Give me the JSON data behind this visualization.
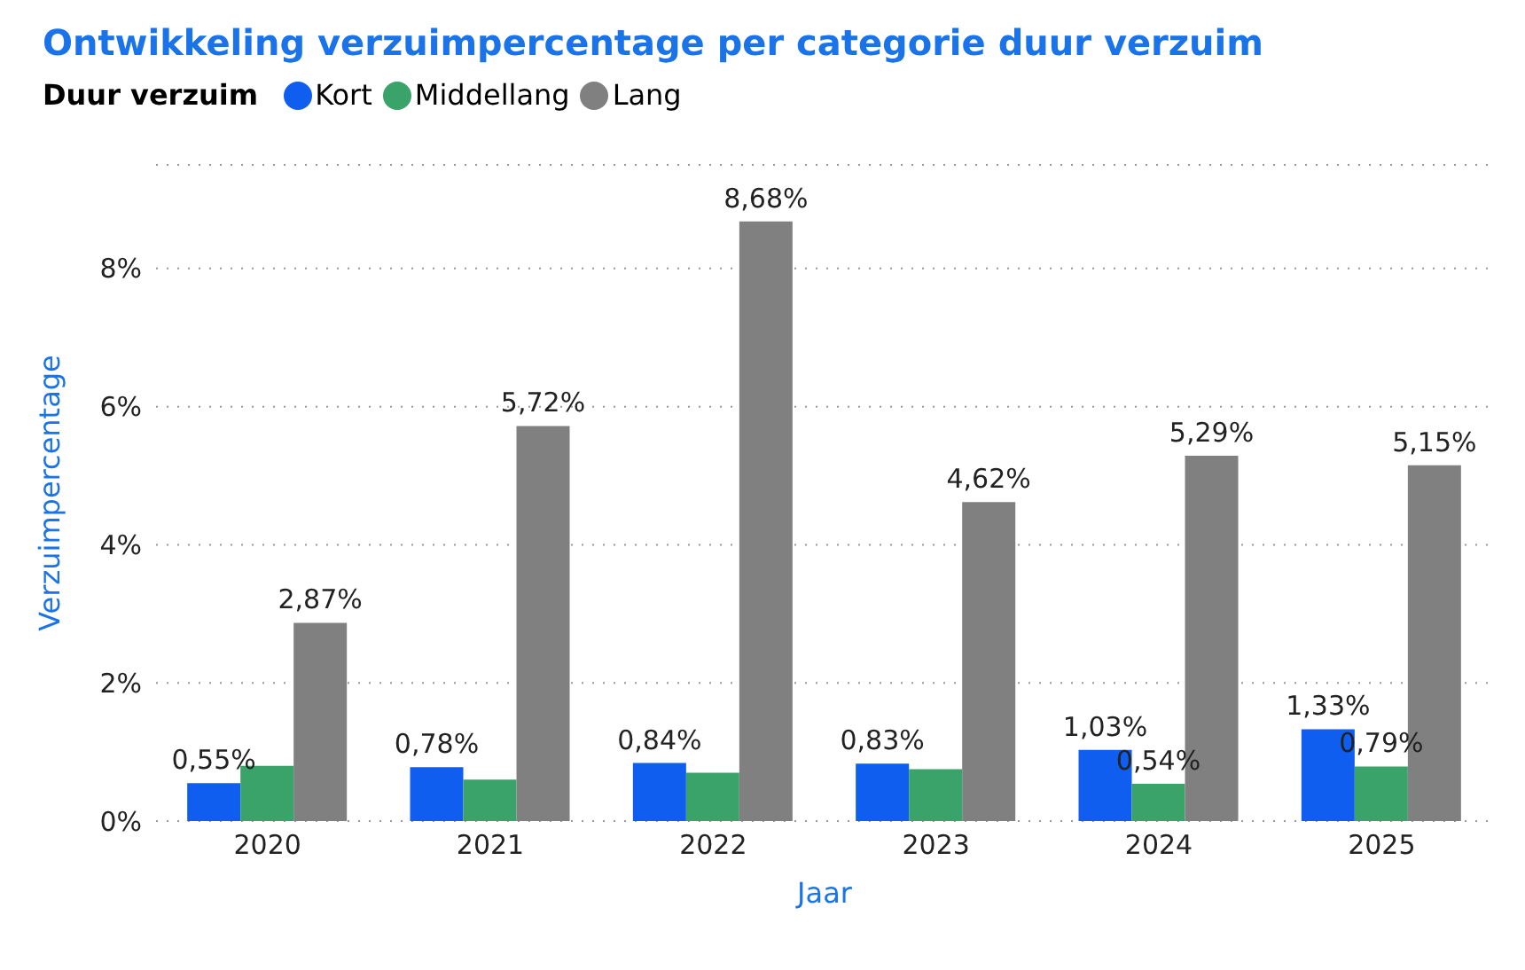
{
  "chart_data": {
    "type": "bar",
    "title": "Ontwikkeling verzuimpercentage per categorie duur verzuim",
    "legend_title": "Duur verzuim",
    "xlabel": "Jaar",
    "ylabel": "Verzuimpercentage",
    "categories": [
      "2020",
      "2021",
      "2022",
      "2023",
      "2024",
      "2025"
    ],
    "series": [
      {
        "name": "Kort",
        "color": "#0f5ef0",
        "values": [
          0.55,
          0.78,
          0.84,
          0.83,
          1.03,
          1.33
        ],
        "value_labels": [
          "0,55%",
          "0,78%",
          "0,84%",
          "0,83%",
          "1,03%",
          "1,33%"
        ]
      },
      {
        "name": "Middellang",
        "color": "#3aa36a",
        "values": [
          0.8,
          0.6,
          0.7,
          0.75,
          0.54,
          0.79
        ],
        "value_labels": [
          null,
          null,
          null,
          null,
          "0,54%",
          "0,79%"
        ]
      },
      {
        "name": "Lang",
        "color": "#808080",
        "values": [
          2.87,
          5.72,
          8.68,
          4.62,
          5.29,
          5.15
        ],
        "value_labels": [
          "2,87%",
          "5,72%",
          "8,68%",
          "4,62%",
          "5,29%",
          "5,15%"
        ]
      }
    ],
    "ylim": [
      0,
      9.5
    ],
    "yticks": [
      {
        "value": 0,
        "label": "0%"
      },
      {
        "value": 2,
        "label": "2%"
      },
      {
        "value": 4,
        "label": "4%"
      },
      {
        "value": 6,
        "label": "6%"
      },
      {
        "value": 8,
        "label": "8%"
      }
    ],
    "grid": "y",
    "legend": "top left"
  }
}
